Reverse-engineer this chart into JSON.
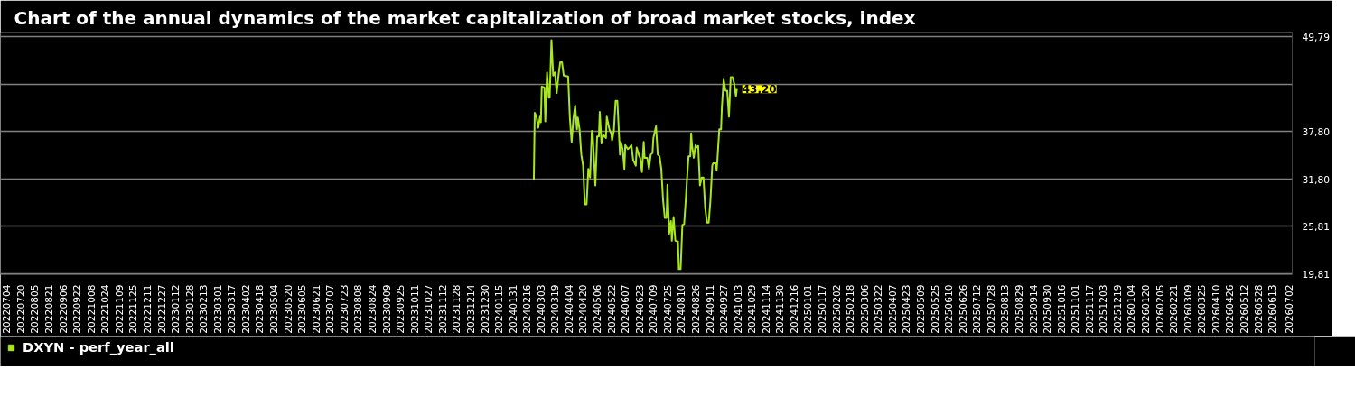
{
  "chart_data": {
    "type": "line",
    "title": "Chart of the annual dynamics of the market capitalization of broad market stocks, index",
    "x": [
      "2024-02-24",
      "2024-02-25",
      "2024-02-27",
      "2024-02-29",
      "2024-03-02",
      "2024-03-03",
      "2024-03-04",
      "2024-03-07",
      "2024-03-08",
      "2024-03-10",
      "2024-03-12",
      "2024-03-13",
      "2024-03-15",
      "2024-03-17",
      "2024-03-19",
      "2024-03-21",
      "2024-03-23",
      "2024-03-25",
      "2024-03-27",
      "2024-03-29",
      "2024-04-03",
      "2024-04-05",
      "2024-04-07",
      "2024-04-09",
      "2024-04-11",
      "2024-04-13",
      "2024-04-14",
      "2024-04-16",
      "2024-04-18",
      "2024-04-20",
      "2024-04-22",
      "2024-04-24",
      "2024-04-26",
      "2024-04-28",
      "2024-04-30",
      "2024-05-01",
      "2024-05-04",
      "2024-05-06",
      "2024-05-08",
      "2024-05-09",
      "2024-05-11",
      "2024-05-13",
      "2024-05-16",
      "2024-05-17",
      "2024-05-20",
      "2024-05-22",
      "2024-05-23",
      "2024-05-25",
      "2024-05-27",
      "2024-05-29",
      "2024-06-01",
      "2024-06-02",
      "2024-06-04",
      "2024-06-06",
      "2024-06-07",
      "2024-06-10",
      "2024-06-12",
      "2024-06-14",
      "2024-06-16",
      "2024-06-17",
      "2024-06-19",
      "2024-06-20",
      "2024-06-23",
      "2024-06-24",
      "2024-06-26",
      "2024-06-28",
      "2024-06-29",
      "2024-07-02",
      "2024-07-04",
      "2024-07-06",
      "2024-07-08",
      "2024-07-09",
      "2024-07-12",
      "2024-07-14",
      "2024-07-16",
      "2024-07-18",
      "2024-07-20",
      "2024-07-22",
      "2024-07-24",
      "2024-07-25",
      "2024-07-27",
      "2024-07-29",
      "2024-07-30",
      "2024-08-01",
      "2024-08-03",
      "2024-08-06",
      "2024-08-07",
      "2024-08-09",
      "2024-08-11",
      "2024-08-13",
      "2024-08-15",
      "2024-08-16",
      "2024-08-18",
      "2024-08-20",
      "2024-08-21",
      "2024-08-22",
      "2024-08-24",
      "2024-08-26",
      "2024-08-27",
      "2024-08-29",
      "2024-08-31",
      "2024-09-02",
      "2024-09-04",
      "2024-09-06",
      "2024-09-08",
      "2024-09-10",
      "2024-09-12",
      "2024-09-14",
      "2024-09-15",
      "2024-09-18",
      "2024-09-19",
      "2024-09-20",
      "2024-09-22",
      "2024-09-24",
      "2024-09-25",
      "2024-09-27",
      "2024-09-29",
      "2024-10-01",
      "2024-10-03",
      "2024-10-05",
      "2024-10-07",
      "2024-10-09",
      "2024-10-10",
      "2024-10-11",
      "2024-10-12"
    ],
    "series": [
      {
        "name": "DXYN - perf_year_all",
        "color": "#a8e61d",
        "values": [
          31.7,
          40.2,
          39.7,
          38.3,
          39.7,
          39.0,
          43.5,
          43.4,
          39.1,
          45.3,
          42.1,
          42.1,
          49.4,
          44.9,
          45.3,
          42.7,
          44.9,
          46.6,
          46.6,
          44.9,
          44.8,
          39.5,
          36.5,
          39.5,
          41.1,
          38.1,
          39.6,
          38.1,
          34.9,
          33.5,
          28.6,
          28.6,
          33.1,
          32.0,
          37.9,
          37.4,
          31.0,
          37.2,
          37.2,
          40.3,
          36.3,
          37.4,
          37.0,
          39.7,
          38.1,
          37.6,
          36.7,
          37.9,
          41.7,
          41.7,
          34.9,
          36.5,
          35.6,
          33.1,
          36.1,
          35.6,
          35.8,
          36.1,
          34.2,
          34.0,
          33.5,
          35.8,
          34.7,
          34.5,
          32.7,
          36.5,
          34.5,
          34.5,
          33.1,
          34.9,
          35.1,
          37.0,
          38.5,
          34.9,
          34.7,
          33.1,
          29.2,
          26.9,
          26.9,
          31.1,
          24.9,
          26.5,
          24.0,
          27.0,
          24.0,
          23.9,
          20.4,
          20.4,
          26.0,
          26.1,
          29.4,
          31.3,
          34.7,
          34.7,
          37.6,
          36.0,
          34.5,
          36.1,
          35.8,
          36.0,
          31.0,
          32.0,
          32.0,
          28.1,
          26.3,
          26.3,
          29.2,
          33.5,
          33.8,
          33.8,
          32.9,
          34.5,
          38.1,
          38.1,
          41.0,
          44.4,
          43.0,
          43.0,
          39.7,
          44.7,
          44.7,
          43.9,
          43.0,
          42.3,
          43.2
        ]
      }
    ],
    "ylim": [
      19.7,
      50.3
    ],
    "yticks": [
      {
        "value": 19.81,
        "label": "19,81"
      },
      {
        "value": 25.81,
        "label": "25,81"
      },
      {
        "value": 31.8,
        "label": "31,80"
      },
      {
        "value": 37.8,
        "label": "37,80"
      },
      {
        "value": 43.79,
        "label": null
      },
      {
        "value": 49.79,
        "label": "49,79"
      }
    ],
    "xlim": [
      "2022-06-27",
      "2026-07-06"
    ],
    "xticks": [
      {
        "value": "2022-07-04",
        "label": "20220704"
      },
      {
        "value": "2022-07-20",
        "label": "20220720"
      },
      {
        "value": "2022-08-05",
        "label": "20220805"
      },
      {
        "value": "2022-08-21",
        "label": "20220821"
      },
      {
        "value": "2022-09-06",
        "label": "20220906"
      },
      {
        "value": "2022-09-22",
        "label": "20220922"
      },
      {
        "value": "2022-10-08",
        "label": "20221008"
      },
      {
        "value": "2022-10-24",
        "label": "20221024"
      },
      {
        "value": "2022-11-09",
        "label": "20221109"
      },
      {
        "value": "2022-11-25",
        "label": "20221125"
      },
      {
        "value": "2022-12-11",
        "label": "20221211"
      },
      {
        "value": "2022-12-27",
        "label": "20221227"
      },
      {
        "value": "2023-01-12",
        "label": "20230112"
      },
      {
        "value": "2023-01-28",
        "label": "20230128"
      },
      {
        "value": "2023-02-13",
        "label": "20230213"
      },
      {
        "value": "2023-03-01",
        "label": "20230301"
      },
      {
        "value": "2023-03-17",
        "label": "20230317"
      },
      {
        "value": "2023-04-02",
        "label": "20230402"
      },
      {
        "value": "2023-04-18",
        "label": "20230418"
      },
      {
        "value": "2023-05-04",
        "label": "20230504"
      },
      {
        "value": "2023-05-20",
        "label": "20230520"
      },
      {
        "value": "2023-06-05",
        "label": "20230605"
      },
      {
        "value": "2023-06-21",
        "label": "20230621"
      },
      {
        "value": "2023-07-07",
        "label": "20230707"
      },
      {
        "value": "2023-07-23",
        "label": "20230723"
      },
      {
        "value": "2023-08-08",
        "label": "20230808"
      },
      {
        "value": "2023-08-24",
        "label": "20230824"
      },
      {
        "value": "2023-09-09",
        "label": "20230909"
      },
      {
        "value": "2023-09-25",
        "label": "20230925"
      },
      {
        "value": "2023-10-11",
        "label": "20231011"
      },
      {
        "value": "2023-10-27",
        "label": "20231027"
      },
      {
        "value": "2023-11-12",
        "label": "20231112"
      },
      {
        "value": "2023-11-28",
        "label": "20231128"
      },
      {
        "value": "2023-12-14",
        "label": "20231214"
      },
      {
        "value": "2023-12-30",
        "label": "20231230"
      },
      {
        "value": "2024-01-15",
        "label": "20240115"
      },
      {
        "value": "2024-01-31",
        "label": "20240131"
      },
      {
        "value": "2024-02-16",
        "label": "20240216"
      },
      {
        "value": "2024-03-03",
        "label": "20240303"
      },
      {
        "value": "2024-03-19",
        "label": "20240319"
      },
      {
        "value": "2024-04-04",
        "label": "20240404"
      },
      {
        "value": "2024-04-20",
        "label": "20240420"
      },
      {
        "value": "2024-05-06",
        "label": "20240506"
      },
      {
        "value": "2024-05-22",
        "label": "20240522"
      },
      {
        "value": "2024-06-07",
        "label": "20240607"
      },
      {
        "value": "2024-06-23",
        "label": "20240623"
      },
      {
        "value": "2024-07-09",
        "label": "20240709"
      },
      {
        "value": "2024-07-25",
        "label": "20240725"
      },
      {
        "value": "2024-08-10",
        "label": "20240810"
      },
      {
        "value": "2024-08-26",
        "label": "20240826"
      },
      {
        "value": "2024-09-11",
        "label": "20240911"
      },
      {
        "value": "2024-09-27",
        "label": "20240927"
      },
      {
        "value": "2024-10-13",
        "label": "20241013"
      },
      {
        "value": "2024-10-29",
        "label": "20241029"
      },
      {
        "value": "2024-11-14",
        "label": "20241114"
      },
      {
        "value": "2024-11-30",
        "label": "20241130"
      },
      {
        "value": "2024-12-16",
        "label": "20241216"
      },
      {
        "value": "2025-01-01",
        "label": "20250101"
      },
      {
        "value": "2025-01-17",
        "label": "20250117"
      },
      {
        "value": "2025-02-02",
        "label": "20250202"
      },
      {
        "value": "2025-02-18",
        "label": "20250218"
      },
      {
        "value": "2025-03-06",
        "label": "20250306"
      },
      {
        "value": "2025-03-22",
        "label": "20250322"
      },
      {
        "value": "2025-04-07",
        "label": "20250407"
      },
      {
        "value": "2025-04-23",
        "label": "20250423"
      },
      {
        "value": "2025-05-09",
        "label": "20250509"
      },
      {
        "value": "2025-05-25",
        "label": "20250525"
      },
      {
        "value": "2025-06-10",
        "label": "20250610"
      },
      {
        "value": "2025-06-26",
        "label": "20250626"
      },
      {
        "value": "2025-07-12",
        "label": "20250712"
      },
      {
        "value": "2025-07-28",
        "label": "20250728"
      },
      {
        "value": "2025-08-13",
        "label": "20250813"
      },
      {
        "value": "2025-08-29",
        "label": "20250829"
      },
      {
        "value": "2025-09-14",
        "label": "20250914"
      },
      {
        "value": "2025-09-30",
        "label": "20250930"
      },
      {
        "value": "2025-10-16",
        "label": "20251016"
      },
      {
        "value": "2025-11-01",
        "label": "20251101"
      },
      {
        "value": "2025-11-17",
        "label": "20251117"
      },
      {
        "value": "2025-12-03",
        "label": "20251203"
      },
      {
        "value": "2025-12-19",
        "label": "20251219"
      },
      {
        "value": "2026-01-04",
        "label": "20260104"
      },
      {
        "value": "2026-01-20",
        "label": "20260120"
      },
      {
        "value": "2026-02-05",
        "label": "20260205"
      },
      {
        "value": "2026-02-21",
        "label": "20260221"
      },
      {
        "value": "2026-03-09",
        "label": "20260309"
      },
      {
        "value": "2026-03-25",
        "label": "20260325"
      },
      {
        "value": "2026-04-10",
        "label": "20260410"
      },
      {
        "value": "2026-04-26",
        "label": "20260426"
      },
      {
        "value": "2026-05-12",
        "label": "20260512"
      },
      {
        "value": "2026-05-28",
        "label": "20260528"
      },
      {
        "value": "2026-06-13",
        "label": "20260613"
      },
      {
        "value": "2026-07-02",
        "label": "20260702"
      }
    ],
    "annotations": [
      {
        "text": "43,20",
        "x": "2024-10-12",
        "y": 43.2
      }
    ],
    "grid": "y",
    "legend": "bottom left"
  }
}
